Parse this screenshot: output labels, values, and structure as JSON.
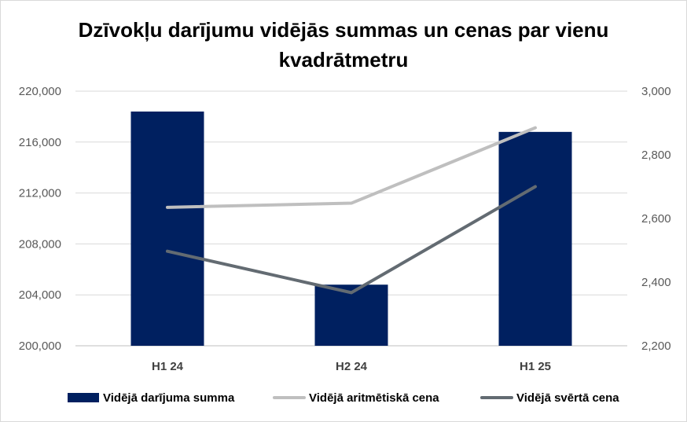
{
  "chart_data": {
    "type": "bar",
    "title": "Dzīvokļu darījumu vidējās summas un cenas par vienu kvadrātmetru",
    "categories": [
      "H1 24",
      "H2 24",
      "H1 25"
    ],
    "left_axis": {
      "ylim": [
        200000,
        220000
      ],
      "ticks": [
        200000,
        204000,
        208000,
        212000,
        216000,
        220000
      ],
      "tick_labels": [
        "200,000",
        "204,000",
        "208,000",
        "212,000",
        "216,000",
        "220,000"
      ]
    },
    "right_axis": {
      "ylim": [
        2200,
        3000
      ],
      "ticks": [
        2200,
        2400,
        2600,
        2800,
        3000
      ],
      "tick_labels": [
        "2,200",
        "2,400",
        "2,600",
        "2,800",
        "3,000"
      ]
    },
    "grid": true,
    "legend_position": "bottom",
    "series": [
      {
        "name": "Vidējā darījuma summa",
        "type": "bar",
        "axis": "left",
        "color": "#002060",
        "values": [
          218400,
          204800,
          216800
        ]
      },
      {
        "name": "Vidējā aritmētiskā cena",
        "type": "line",
        "axis": "right",
        "color": "#bfbfbf",
        "values": [
          2635,
          2648,
          2885
        ]
      },
      {
        "name": "Vidējā svērtā cena",
        "type": "line",
        "axis": "right",
        "color": "#636b72",
        "values": [
          2497,
          2367,
          2700
        ]
      }
    ]
  }
}
